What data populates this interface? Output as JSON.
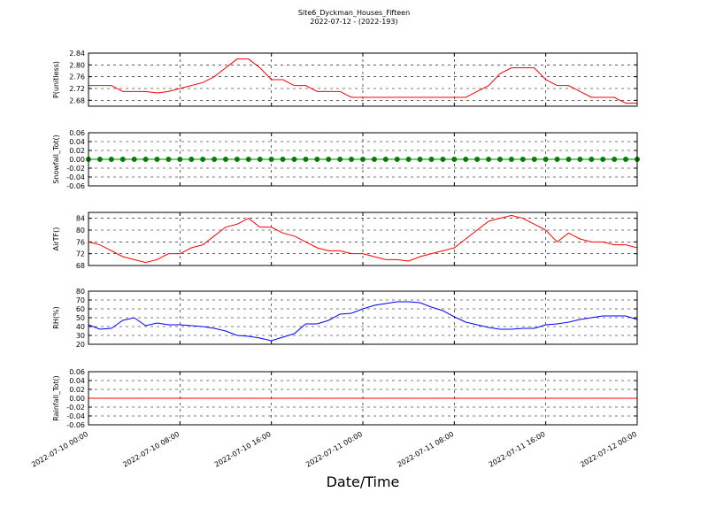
{
  "title": "Site6_Dyckman_Houses_Fifteen",
  "subtitle": "2022-07-12 - (2022-193)",
  "x_label": "Date/Time",
  "x": [
    "2022-07-10 00:00",
    "2022-07-10 01:00",
    "2022-07-10 02:00",
    "2022-07-10 03:00",
    "2022-07-10 04:00",
    "2022-07-10 05:00",
    "2022-07-10 06:00",
    "2022-07-10 07:00",
    "2022-07-10 08:00",
    "2022-07-10 09:00",
    "2022-07-10 10:00",
    "2022-07-10 11:00",
    "2022-07-10 12:00",
    "2022-07-10 13:00",
    "2022-07-10 14:00",
    "2022-07-10 15:00",
    "2022-07-10 16:00",
    "2022-07-10 17:00",
    "2022-07-10 18:00",
    "2022-07-10 19:00",
    "2022-07-10 20:00",
    "2022-07-10 21:00",
    "2022-07-10 22:00",
    "2022-07-10 23:00",
    "2022-07-11 00:00",
    "2022-07-11 01:00",
    "2022-07-11 02:00",
    "2022-07-11 03:00",
    "2022-07-11 04:00",
    "2022-07-11 05:00",
    "2022-07-11 06:00",
    "2022-07-11 07:00",
    "2022-07-11 08:00",
    "2022-07-11 09:00",
    "2022-07-11 10:00",
    "2022-07-11 11:00",
    "2022-07-11 12:00",
    "2022-07-11 13:00",
    "2022-07-11 14:00",
    "2022-07-11 15:00",
    "2022-07-11 16:00",
    "2022-07-11 17:00",
    "2022-07-11 18:00",
    "2022-07-11 19:00",
    "2022-07-11 20:00",
    "2022-07-11 21:00",
    "2022-07-11 22:00",
    "2022-07-11 23:00",
    "2022-07-12 00:00"
  ],
  "xticks": [
    "2022-07-10 00:00",
    "2022-07-10 08:00",
    "2022-07-10 16:00",
    "2022-07-11 00:00",
    "2022-07-11 08:00",
    "2022-07-11 16:00",
    "2022-07-12 00:00"
  ],
  "chart_data": [
    {
      "type": "line",
      "ylabel": "P(unitless)",
      "color": "#ff0000",
      "grid": true,
      "ylim": [
        2.66,
        2.84
      ],
      "yticks": [
        2.68,
        2.72,
        2.76,
        {
          "value": 2.8,
          "label": "2.80"
        },
        2.84
      ],
      "values": [
        2.73,
        2.73,
        2.73,
        2.71,
        2.71,
        2.71,
        2.705,
        2.71,
        2.72,
        2.73,
        2.74,
        2.76,
        2.79,
        2.82,
        2.82,
        2.79,
        2.75,
        2.75,
        2.73,
        2.73,
        2.71,
        2.71,
        2.71,
        2.69,
        2.69,
        2.69,
        2.69,
        2.69,
        2.69,
        2.69,
        2.69,
        2.69,
        2.69,
        2.69,
        2.71,
        2.73,
        2.77,
        2.79,
        2.79,
        2.79,
        2.75,
        2.73,
        2.73,
        2.71,
        2.69,
        2.69,
        2.69,
        2.67,
        2.67
      ]
    },
    {
      "type": "line",
      "ylabel": "Snowfall_Tot()",
      "color": "#008000",
      "marker": "o",
      "grid": true,
      "ylim": [
        -0.06,
        0.06
      ],
      "yticks": [
        -0.06,
        -0.04,
        -0.02,
        {
          "value": 0,
          "label": "0.00"
        },
        0.02,
        0.04,
        0.06
      ],
      "values": [
        0,
        0,
        0,
        0,
        0,
        0,
        0,
        0,
        0,
        0,
        0,
        0,
        0,
        0,
        0,
        0,
        0,
        0,
        0,
        0,
        0,
        0,
        0,
        0,
        0,
        0,
        0,
        0,
        0,
        0,
        0,
        0,
        0,
        0,
        0,
        0,
        0,
        0,
        0,
        0,
        0,
        0,
        0,
        0,
        0,
        0,
        0,
        0,
        0
      ]
    },
    {
      "type": "line",
      "ylabel": "AirTF()",
      "color": "#ff0000",
      "grid": true,
      "ylim": [
        68,
        86
      ],
      "yticks": [
        68,
        72,
        76,
        80,
        84
      ],
      "values": [
        76,
        75,
        73,
        71,
        70,
        69,
        70,
        72,
        72,
        74,
        75,
        78,
        81,
        82,
        84,
        81,
        81,
        79,
        78,
        76,
        74,
        73,
        73,
        72,
        72,
        71,
        70,
        70,
        69.5,
        71,
        72,
        73,
        74,
        77,
        80,
        83,
        84,
        85,
        84,
        82,
        80,
        76,
        79,
        77,
        76,
        76,
        75,
        75,
        74
      ]
    },
    {
      "type": "line",
      "ylabel": "RH(%)",
      "color": "#0000ff",
      "grid": true,
      "ylim": [
        20,
        80
      ],
      "yticks": [
        20,
        30,
        40,
        50,
        60,
        70,
        80
      ],
      "values": [
        42,
        37,
        38,
        47,
        50,
        41,
        44,
        42,
        42,
        41,
        40,
        38,
        35,
        30,
        29,
        27,
        24,
        28,
        32,
        43,
        43,
        47,
        54,
        55,
        60,
        64,
        66,
        68,
        68,
        67,
        62,
        58,
        51,
        45,
        42,
        39,
        37,
        37,
        38,
        38,
        42,
        43,
        45,
        48,
        50,
        52,
        52,
        52,
        48
      ]
    },
    {
      "type": "line",
      "ylabel": "Rainfall_Tot()",
      "color": "#ff0000",
      "grid": true,
      "ylim": [
        -0.06,
        0.06
      ],
      "yticks": [
        -0.06,
        -0.04,
        -0.02,
        {
          "value": 0,
          "label": "0.00"
        },
        0.02,
        0.04,
        0.06
      ],
      "values": [
        0,
        0,
        0,
        0,
        0,
        0,
        0,
        0,
        0,
        0,
        0,
        0,
        0,
        0,
        0,
        0,
        0,
        0,
        0,
        0,
        0,
        0,
        0,
        0,
        0,
        0,
        0,
        0,
        0,
        0,
        0,
        0,
        0,
        0,
        0,
        0,
        0,
        0,
        0,
        0,
        0,
        0,
        0,
        0,
        0,
        0,
        0,
        0,
        0
      ]
    }
  ]
}
